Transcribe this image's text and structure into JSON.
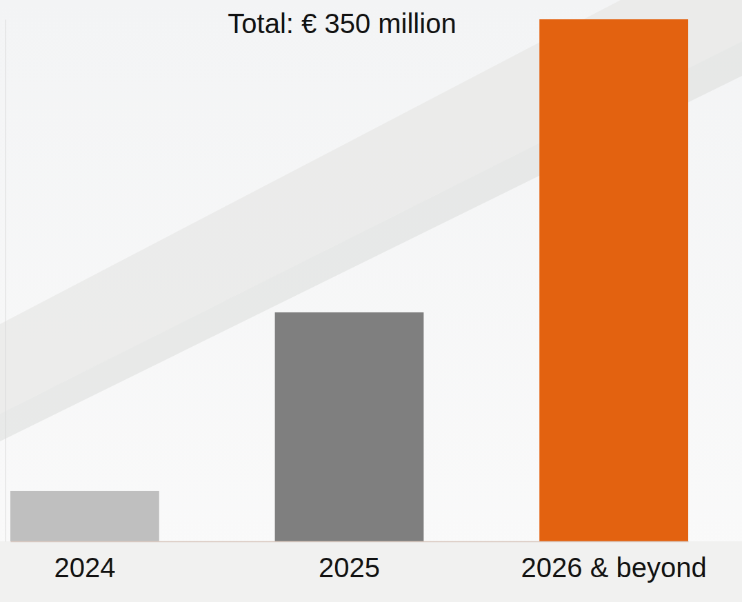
{
  "chart_data": {
    "type": "bar",
    "title": "Total: € 350 million",
    "categories": [
      "2024",
      "2025",
      "2026 & beyond"
    ],
    "values": [
      22,
      100,
      228
    ],
    "colors": [
      "#bfbfbf",
      "#7f7f7f",
      "#e36210"
    ],
    "ylim": [
      0,
      228
    ],
    "tick_labels": "x"
  }
}
